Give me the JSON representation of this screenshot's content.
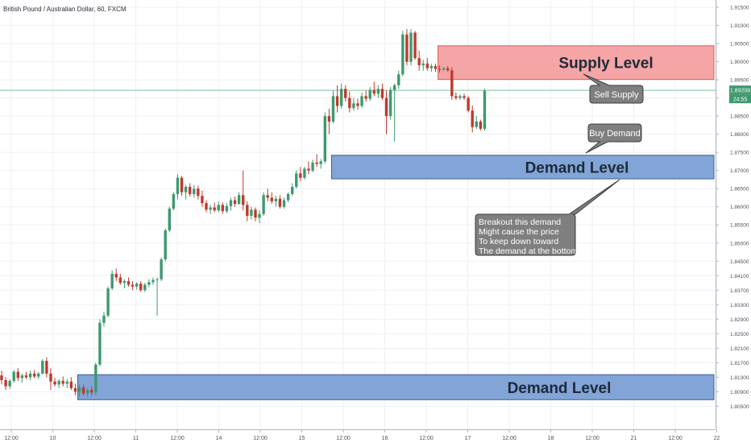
{
  "header": {
    "symbol_title": "British Pound / Australian Dollar, 60, FXCM"
  },
  "colors": {
    "up": "#3d9970",
    "down": "#c0392b",
    "supply_fill": "#f4a0a0",
    "demand_fill": "#7b9fd4",
    "grid": "#eef1f5",
    "price_line": "#7dc3a0",
    "callout_fill": "#7f7f7f"
  },
  "chart_data": {
    "type": "candlestick",
    "title": "British Pound / Australian Dollar, 60, FXCM",
    "y_axis": {
      "ylim": [
        1.8022,
        1.9159
      ],
      "ticks": [
        "1.91500",
        "1.91000",
        "1.90500",
        "1.90000",
        "1.89500",
        "1.89000",
        "1.88500",
        "1.88000",
        "1.87500",
        "1.87000",
        "1.86500",
        "1.86000",
        "1.85500",
        "1.85000",
        "1.84500",
        "1.84100",
        "1.83700",
        "1.83300",
        "1.82900",
        "1.82500",
        "1.82100",
        "1.81700",
        "1.81300",
        "1.80900",
        "1.80500"
      ],
      "current_price_label": "1.89208",
      "countdown_label": "24:55",
      "current_price": 1.8921
    },
    "x_axis": {
      "ticks": [
        "12:00",
        "10",
        "12:00",
        "11",
        "12:00",
        "14",
        "12:00",
        "15",
        "12:00",
        "16",
        "12:00",
        "17",
        "12:00",
        "18",
        "12:00",
        "21",
        "12:00",
        "22"
      ]
    },
    "zones": [
      {
        "label": "Supply Level",
        "kind": "supply",
        "top": 1.9044,
        "bottom": 1.8951,
        "from_bar": 107
      },
      {
        "label": "Demand Level",
        "kind": "demand",
        "top": 1.8742,
        "bottom": 1.8677,
        "from_bar": 81
      },
      {
        "label": "Demand Level",
        "kind": "demand",
        "top": 1.8137,
        "bottom": 1.8068,
        "from_bar": 19
      }
    ],
    "annotations": [
      {
        "id": "sell-supply",
        "lines": [
          "Sell Supply"
        ]
      },
      {
        "id": "buy-demand",
        "lines": [
          "Buy Demand"
        ]
      },
      {
        "id": "breakout-note",
        "lines": [
          "Breakout this demand",
          "Might cause the price",
          "To keep down toward",
          "The demand at the bottom."
        ]
      }
    ],
    "candles": [
      [
        1.8135,
        1.8148,
        1.811,
        1.8122
      ],
      [
        1.8122,
        1.813,
        1.8095,
        1.8105
      ],
      [
        1.8105,
        1.8125,
        1.8098,
        1.812
      ],
      [
        1.812,
        1.815,
        1.8115,
        1.8145
      ],
      [
        1.8145,
        1.8155,
        1.812,
        1.8128
      ],
      [
        1.8128,
        1.814,
        1.8115,
        1.8135
      ],
      [
        1.8135,
        1.8145,
        1.8125,
        1.813
      ],
      [
        1.813,
        1.8148,
        1.8122,
        1.814
      ],
      [
        1.814,
        1.815,
        1.8128,
        1.8132
      ],
      [
        1.8132,
        1.8145,
        1.8125,
        1.814
      ],
      [
        1.814,
        1.818,
        1.8138,
        1.8175
      ],
      [
        1.8175,
        1.8185,
        1.813,
        1.814
      ],
      [
        1.814,
        1.8155,
        1.8095,
        1.8118
      ],
      [
        1.8118,
        1.8128,
        1.8105,
        1.811
      ],
      [
        1.811,
        1.8125,
        1.81,
        1.812
      ],
      [
        1.812,
        1.8132,
        1.8105,
        1.8112
      ],
      [
        1.8112,
        1.8125,
        1.81,
        1.8118
      ],
      [
        1.8118,
        1.813,
        1.8095,
        1.81
      ],
      [
        1.81,
        1.8112,
        1.808,
        1.809
      ],
      [
        1.809,
        1.811,
        1.8075,
        1.8102
      ],
      [
        1.8102,
        1.811,
        1.808,
        1.8085
      ],
      [
        1.8085,
        1.81,
        1.8075,
        1.8095
      ],
      [
        1.8095,
        1.8105,
        1.808,
        1.8088
      ],
      [
        1.8088,
        1.817,
        1.808,
        1.8165
      ],
      [
        1.8165,
        1.829,
        1.816,
        1.828
      ],
      [
        1.828,
        1.831,
        1.827,
        1.83
      ],
      [
        1.83,
        1.838,
        1.8295,
        1.8375
      ],
      [
        1.8375,
        1.8425,
        1.837,
        1.8415
      ],
      [
        1.8415,
        1.843,
        1.8395,
        1.8405
      ],
      [
        1.8405,
        1.8415,
        1.8385,
        1.839
      ],
      [
        1.839,
        1.84,
        1.8375,
        1.8395
      ],
      [
        1.8395,
        1.8405,
        1.838,
        1.8385
      ],
      [
        1.8385,
        1.8395,
        1.837,
        1.838
      ],
      [
        1.838,
        1.8392,
        1.8372,
        1.8388
      ],
      [
        1.8388,
        1.8395,
        1.8365,
        1.837
      ],
      [
        1.837,
        1.839,
        1.8365,
        1.8385
      ],
      [
        1.8385,
        1.84,
        1.8378,
        1.8392
      ],
      [
        1.8392,
        1.8405,
        1.8385,
        1.8398
      ],
      [
        1.8398,
        1.8405,
        1.83,
        1.84
      ],
      [
        1.84,
        1.846,
        1.8395,
        1.8455
      ],
      [
        1.8455,
        1.854,
        1.845,
        1.8535
      ],
      [
        1.8535,
        1.86,
        1.853,
        1.8595
      ],
      [
        1.8595,
        1.864,
        1.859,
        1.8635
      ],
      [
        1.8635,
        1.869,
        1.862,
        1.868
      ],
      [
        1.868,
        1.8685,
        1.863,
        1.864
      ],
      [
        1.864,
        1.866,
        1.862,
        1.8655
      ],
      [
        1.8655,
        1.8665,
        1.8628,
        1.8635
      ],
      [
        1.8635,
        1.866,
        1.8625,
        1.865
      ],
      [
        1.865,
        1.8658,
        1.862,
        1.863
      ],
      [
        1.863,
        1.8645,
        1.86,
        1.861
      ],
      [
        1.861,
        1.8618,
        1.8585,
        1.8592
      ],
      [
        1.8592,
        1.8605,
        1.858,
        1.8598
      ],
      [
        1.8598,
        1.8612,
        1.8585,
        1.859
      ],
      [
        1.859,
        1.8615,
        1.8585,
        1.8605
      ],
      [
        1.8605,
        1.8612,
        1.858,
        1.8588
      ],
      [
        1.8588,
        1.861,
        1.8582,
        1.8602
      ],
      [
        1.8602,
        1.8625,
        1.859,
        1.8618
      ],
      [
        1.8618,
        1.8628,
        1.86,
        1.8608
      ],
      [
        1.8608,
        1.864,
        1.8605,
        1.8632
      ],
      [
        1.8632,
        1.87,
        1.859,
        1.8605
      ],
      [
        1.8605,
        1.8615,
        1.856,
        1.8575
      ],
      [
        1.8575,
        1.86,
        1.8565,
        1.8592
      ],
      [
        1.8592,
        1.8598,
        1.856,
        1.857
      ],
      [
        1.857,
        1.859,
        1.8555,
        1.858
      ],
      [
        1.858,
        1.864,
        1.8575,
        1.8632
      ],
      [
        1.8632,
        1.865,
        1.8615,
        1.8625
      ],
      [
        1.8625,
        1.864,
        1.8608,
        1.8615
      ],
      [
        1.8615,
        1.863,
        1.86,
        1.8622
      ],
      [
        1.8622,
        1.8632,
        1.8595,
        1.86
      ],
      [
        1.86,
        1.8625,
        1.8595,
        1.8618
      ],
      [
        1.8618,
        1.864,
        1.8612,
        1.8635
      ],
      [
        1.8635,
        1.8665,
        1.863,
        1.8655
      ],
      [
        1.8655,
        1.87,
        1.865,
        1.8692
      ],
      [
        1.8692,
        1.871,
        1.867,
        1.868
      ],
      [
        1.868,
        1.871,
        1.8675,
        1.8705
      ],
      [
        1.8705,
        1.8725,
        1.869,
        1.87
      ],
      [
        1.87,
        1.873,
        1.8695,
        1.8722
      ],
      [
        1.8722,
        1.8745,
        1.871,
        1.8718
      ],
      [
        1.8718,
        1.8732,
        1.8705,
        1.8725
      ],
      [
        1.8725,
        1.886,
        1.872,
        1.885
      ],
      [
        1.885,
        1.887,
        1.88,
        1.8835
      ],
      [
        1.8835,
        1.892,
        1.883,
        1.8905
      ],
      [
        1.8905,
        1.8935,
        1.886,
        1.8878
      ],
      [
        1.8878,
        1.894,
        1.887,
        1.8925
      ],
      [
        1.8925,
        1.8935,
        1.889,
        1.89
      ],
      [
        1.89,
        1.8918,
        1.886,
        1.8872
      ],
      [
        1.8872,
        1.89,
        1.8865,
        1.8885
      ],
      [
        1.8885,
        1.8898,
        1.8868,
        1.8878
      ],
      [
        1.8878,
        1.8915,
        1.8872,
        1.8905
      ],
      [
        1.8905,
        1.892,
        1.889,
        1.8898
      ],
      [
        1.8898,
        1.893,
        1.8892,
        1.8922
      ],
      [
        1.8922,
        1.8945,
        1.8905,
        1.8912
      ],
      [
        1.8912,
        1.8935,
        1.89,
        1.8925
      ],
      [
        1.8925,
        1.894,
        1.8895,
        1.89
      ],
      [
        1.89,
        1.892,
        1.88,
        1.885
      ],
      [
        1.885,
        1.893,
        1.884,
        1.8922
      ],
      [
        1.8922,
        1.894,
        1.878,
        1.8935
      ],
      [
        1.8935,
        1.8975,
        1.8925,
        1.8965
      ],
      [
        1.8965,
        1.9085,
        1.896,
        1.9075
      ],
      [
        1.9075,
        1.909,
        1.899,
        1.9
      ],
      [
        1.9,
        1.909,
        1.899,
        1.908
      ],
      [
        1.908,
        1.9085,
        1.9005,
        1.901
      ],
      [
        1.901,
        1.903,
        1.8975,
        1.899
      ],
      [
        1.899,
        1.9005,
        1.8975,
        1.8995
      ],
      [
        1.8995,
        1.901,
        1.8975,
        1.8982
      ],
      [
        1.8982,
        1.8995,
        1.8972,
        1.8988
      ],
      [
        1.8988,
        1.8995,
        1.8972,
        1.898
      ],
      [
        1.898,
        1.899,
        1.897,
        1.8978
      ],
      [
        1.8978,
        1.8985,
        1.8975,
        1.8982
      ],
      [
        1.8982,
        1.8988,
        1.8972,
        1.8976
      ],
      [
        1.8976,
        1.8985,
        1.8895,
        1.8905
      ],
      [
        1.8905,
        1.8915,
        1.8895,
        1.89
      ],
      [
        1.89,
        1.891,
        1.8895,
        1.8905
      ],
      [
        1.8905,
        1.8912,
        1.8895,
        1.89
      ],
      [
        1.89,
        1.8905,
        1.886,
        1.8865
      ],
      [
        1.8865,
        1.888,
        1.8805,
        1.882
      ],
      [
        1.882,
        1.885,
        1.8815,
        1.8835
      ],
      [
        1.8835,
        1.884,
        1.881,
        1.8815
      ],
      [
        1.8815,
        1.8925,
        1.881,
        1.892
      ]
    ]
  }
}
